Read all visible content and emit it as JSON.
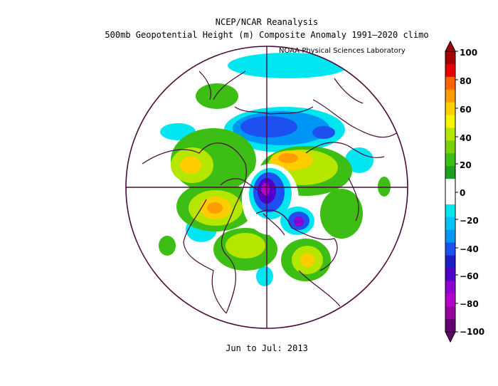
{
  "header": {
    "line1": "NCEP/NCAR Reanalysis",
    "line2": "500mb Geopotential Height (m) Composite Anomaly 1991–2020 climo",
    "credit": "NOAA Physical Sciences Laboratory"
  },
  "footer": {
    "period": "Jun to Jul: 2013"
  },
  "colorbar": {
    "labels": [
      "100",
      "80",
      "60",
      "40",
      "20",
      "0",
      "−20",
      "−40",
      "−60",
      "−80",
      "−100"
    ],
    "colors": [
      "#a50000",
      "#e60000",
      "#ff6400",
      "#ff9d00",
      "#ffcd00",
      "#f5f500",
      "#b4e600",
      "#78d200",
      "#3cbe14",
      "#1ea01e",
      "#ffffff",
      "#ffffff",
      "#00e6f0",
      "#00c3f5",
      "#0096f5",
      "#1e50f0",
      "#1e1ec8",
      "#5000c8",
      "#8c00d2",
      "#b400c8",
      "#96009b",
      "#64006e"
    ]
  }
}
